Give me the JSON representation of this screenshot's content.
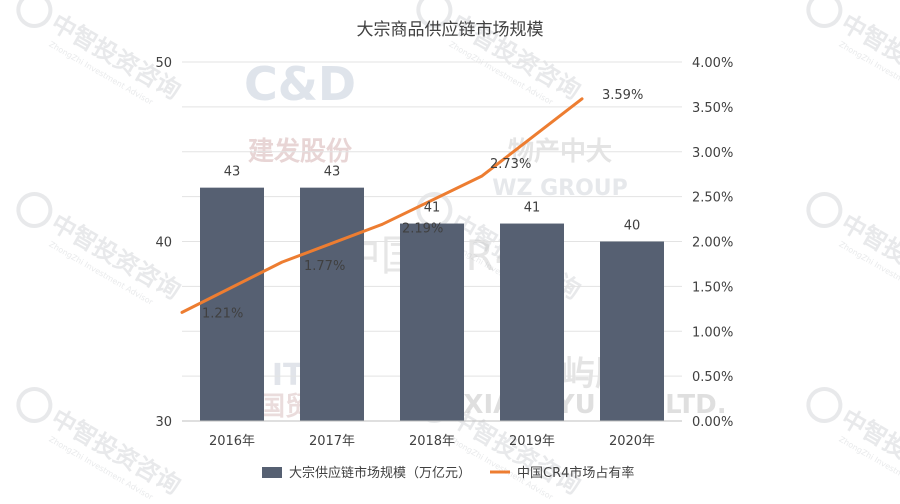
{
  "chart_data": {
    "type": "bar+line",
    "title": "大宗商品供应链市场规模",
    "categories": [
      "2016年",
      "2017年",
      "2018年",
      "2019年",
      "2020年"
    ],
    "series": [
      {
        "name": "大宗供应链市场规模（万亿元）",
        "type": "bar",
        "axis": "left",
        "values": [
          43,
          43,
          41,
          41,
          40
        ],
        "labels": [
          "43",
          "43",
          "41",
          "41",
          "40"
        ],
        "color": "#566072"
      },
      {
        "name": "中国CR4市场占有率",
        "type": "line",
        "axis": "right",
        "values": [
          1.21,
          1.77,
          2.19,
          2.73,
          3.59
        ],
        "labels": [
          "1.21%",
          "1.77%",
          "2.19%",
          "2.73%",
          "3.59%"
        ],
        "color": "#ed7d31"
      }
    ],
    "y_left": {
      "ylim": [
        30,
        50
      ],
      "ticks": [
        "30",
        "40",
        "50"
      ]
    },
    "y_right": {
      "ylim": [
        0,
        4
      ],
      "ticks": [
        "0.00%",
        "0.50%",
        "1.00%",
        "1.50%",
        "2.00%",
        "2.50%",
        "3.00%",
        "3.50%",
        "4.00%"
      ]
    },
    "grid": true,
    "legend": "bottom"
  },
  "watermarks": {
    "repeat_text": "中智投资咨询",
    "repeat_sub": "ZhongZhi Investment Advisor",
    "logos": [
      {
        "name": "C&D",
        "sub": "建发股份"
      },
      {
        "name": "WZ GROUP",
        "sub": "物产中大"
      },
      {
        "name": "ITG",
        "sub": "厦门国贸集团"
      },
      {
        "name": "象屿股份",
        "sub": "XIANGYU CO.,LTD."
      }
    ],
    "center_text": "中国 CR4"
  }
}
